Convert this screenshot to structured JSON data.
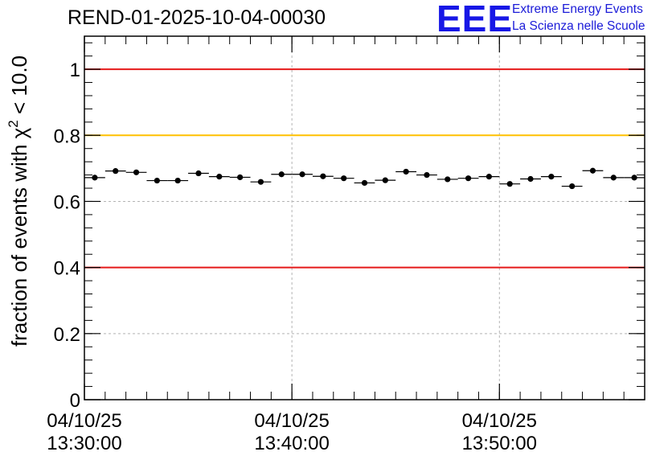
{
  "chart_data": {
    "type": "scatter",
    "title": "REND-01-2025-10-04-00030",
    "ylabel_prefix": "fraction of events with",
    "ylabel_symbol": "χ",
    "ylabel_exponent": "2",
    "ylabel_suffix": "< 10.0",
    "ylim": [
      0,
      1.1
    ],
    "xlim_minutes": [
      0,
      27
    ],
    "yticks": [
      {
        "value": 0,
        "label": "0"
      },
      {
        "value": 0.2,
        "label": "0.2"
      },
      {
        "value": 0.4,
        "label": "0.4"
      },
      {
        "value": 0.6,
        "label": "0.6"
      },
      {
        "value": 0.8,
        "label": "0.8"
      },
      {
        "value": 1.0,
        "label": "1"
      }
    ],
    "xticks": [
      {
        "minute": 0,
        "date": "04/10/25",
        "time": "13:30:00"
      },
      {
        "minute": 10,
        "date": "04/10/25",
        "time": "13:40:00"
      },
      {
        "minute": 20,
        "date": "04/10/25",
        "time": "13:50:00"
      }
    ],
    "grid": true,
    "reference_lines": [
      {
        "value": 1.0,
        "color": "#e51919"
      },
      {
        "value": 0.8,
        "color": "#ffc000"
      },
      {
        "value": 0.4,
        "color": "#e51919"
      }
    ],
    "x_minutes": [
      0.5,
      1.5,
      2.5,
      3.5,
      4.5,
      5.5,
      6.5,
      7.5,
      8.5,
      9.5,
      10.5,
      11.5,
      12.5,
      13.5,
      14.5,
      15.5,
      16.5,
      17.5,
      18.5,
      19.5,
      20.5,
      21.5,
      22.5,
      23.5,
      24.5,
      25.5,
      26.5
    ],
    "values": [
      0.672,
      0.692,
      0.688,
      0.663,
      0.663,
      0.685,
      0.675,
      0.673,
      0.659,
      0.682,
      0.682,
      0.676,
      0.67,
      0.656,
      0.664,
      0.69,
      0.68,
      0.667,
      0.67,
      0.675,
      0.653,
      0.668,
      0.675,
      0.646,
      0.693,
      0.672,
      0.672
    ],
    "bin_width_minutes": 1
  },
  "logo": {
    "mark": "EEE",
    "line1": "Extreme Energy Events",
    "line2": "La Scienza nelle Scuole",
    "color": "#1717e6"
  }
}
